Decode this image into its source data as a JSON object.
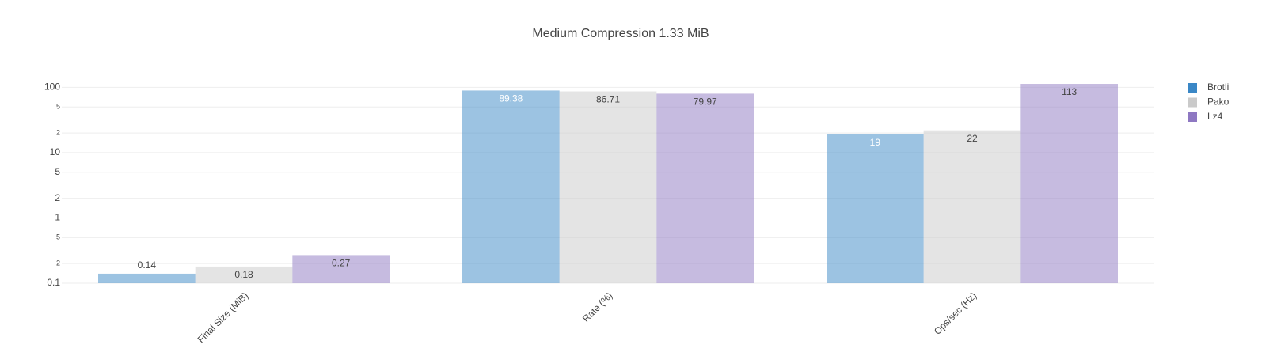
{
  "chart_data": {
    "type": "bar",
    "title": "Medium Compression 1.33 MiB",
    "categories": [
      "Final Size (MiB)",
      "Rate (%)",
      "Ops/sec (Hz)"
    ],
    "series": [
      {
        "name": "Brotli",
        "color": "#3a87c6",
        "values": [
          0.14,
          89.38,
          19
        ]
      },
      {
        "name": "Pako",
        "color": "#cacaca",
        "values": [
          0.18,
          86.71,
          22
        ]
      },
      {
        "name": "Lz4",
        "color": "#8e78c2",
        "values": [
          0.27,
          79.97,
          113
        ]
      }
    ],
    "bar_opacity": 0.5,
    "log_y": true,
    "ylim": [
      0.1,
      130
    ],
    "yticks": [
      0.1,
      {
        "value": 0.2,
        "label": "2"
      },
      {
        "value": 0.5,
        "label": "5"
      },
      1,
      2,
      5,
      10,
      {
        "value": 20,
        "label": "2"
      },
      {
        "value": 50,
        "label": "5"
      },
      100
    ],
    "grid": true,
    "legend": "right"
  }
}
